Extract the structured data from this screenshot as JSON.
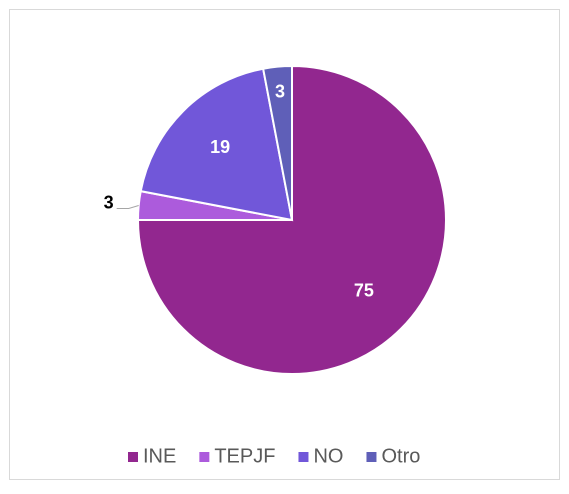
{
  "chart_data": {
    "type": "pie",
    "categories": [
      "INE",
      "TEPJF",
      "NO",
      "Otro"
    ],
    "values": [
      75,
      3,
      19,
      3
    ],
    "colors": [
      "#92278f",
      "#ac5bdc",
      "#7157d9",
      "#5f5fb8"
    ],
    "legend": "bottom"
  }
}
